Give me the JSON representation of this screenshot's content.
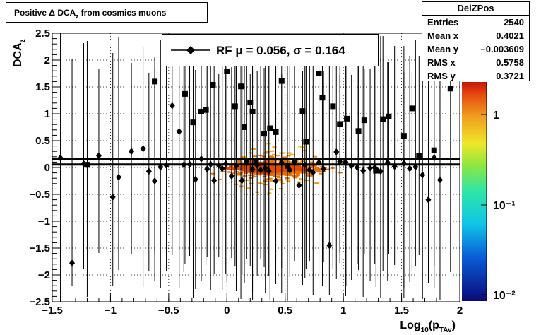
{
  "title": "Positive Δ DCA_z from cosmics muons",
  "stats": {
    "name": "DelZPos",
    "rows": [
      {
        "key": "Entries",
        "value": "2540"
      },
      {
        "key": "Mean x",
        "value": "0.4021"
      },
      {
        "key": "Mean y",
        "value": "−0.003609"
      },
      {
        "key": "RMS x",
        "value": "0.5758"
      },
      {
        "key": "RMS y",
        "value": "0.3721"
      }
    ]
  },
  "legend": {
    "label": "RF μ =  0.056, σ =   0.164"
  },
  "chart_data": {
    "type": "scatter",
    "xlabel": "Log_10(p_TAv)",
    "ylabel": "DCA_z",
    "xlim": [
      -1.5,
      2
    ],
    "ylim": [
      -2.5,
      2.5
    ],
    "x_ticks": [
      "−1.5",
      "−1",
      "−0.5",
      "0",
      "0.5",
      "1",
      "1.5",
      "2"
    ],
    "y_ticks": [
      "−2.5",
      "−2",
      "−1.5",
      "−1",
      "−0.5",
      "0",
      "0.5",
      "1",
      "1.5",
      "2",
      "2.5"
    ],
    "grid": true,
    "colz": {
      "scale": "log",
      "ticks": [
        "10⁻²",
        "10⁻¹",
        "1"
      ]
    },
    "fit_lines": [
      0.056,
      0.164
    ],
    "series": [
      {
        "marker": "diamond",
        "x": [
          -1.43,
          -1.33,
          -1.23,
          -1.1,
          -0.98,
          -0.93,
          -0.82,
          -0.72,
          -0.67,
          -0.62,
          -0.57,
          -0.52,
          -0.47,
          -0.41,
          -0.37,
          -0.32,
          -0.27,
          -0.22,
          -0.17,
          -0.14,
          -0.11,
          -0.07,
          -0.04,
          -0.01,
          0.04,
          0.08,
          0.13,
          0.17,
          0.22,
          0.26,
          0.29,
          0.33,
          0.36,
          0.42,
          0.47,
          0.54,
          0.58,
          0.62,
          0.67,
          0.71,
          0.74,
          0.79,
          0.83,
          0.88,
          0.94,
          0.97,
          1.02,
          1.07,
          1.12,
          1.17,
          1.23,
          1.27,
          1.32,
          1.38,
          1.44,
          1.52,
          1.57,
          1.62,
          1.68,
          1.73,
          1.78,
          1.83
        ],
        "y": [
          0.18,
          -1.78,
          0.07,
          0.22,
          -0.55,
          -0.18,
          0.3,
          0.35,
          -0.07,
          -0.25,
          0.01,
          0.04,
          1.15,
          0.67,
          0.05,
          0.06,
          -0.22,
          0.16,
          -0.03,
          0.06,
          -0.24,
          0.04,
          -0.02,
          0.07,
          -0.16,
          0.03,
          -0.24,
          0.11,
          -0.04,
          0.04,
          -0.05,
          -0.01,
          -0.07,
          -0.25,
          0.09,
          -0.05,
          0.11,
          -0.33,
          0.05,
          -0.05,
          -0.09,
          0.09,
          -0.03,
          -1.45,
          0.29,
          0.11,
          0.1,
          0.03,
          0.0,
          -0.06,
          -0.01,
          0.0,
          -0.07,
          0.09,
          0.02,
          0.08,
          -0.02,
          0.01,
          -0.14,
          -0.6,
          0.18,
          -0.23
        ]
      },
      {
        "marker": "square",
        "x": [
          -1.2,
          -0.62,
          -0.36,
          -0.29,
          -0.22,
          -0.18,
          -0.12,
          0.0,
          0.07,
          0.12,
          0.15,
          0.2,
          0.22,
          0.25,
          0.32,
          0.37,
          0.42,
          0.47,
          0.52,
          0.65,
          0.68,
          0.79,
          0.82,
          0.91,
          0.97,
          1.03,
          1.13,
          1.18,
          1.28,
          1.34,
          1.39,
          1.52,
          1.59,
          1.65,
          1.78,
          1.92
        ],
        "y": [
          0.05,
          1.6,
          1.37,
          0.84,
          1.04,
          1.07,
          1.54,
          1.79,
          1.14,
          1.51,
          0.75,
          1.21,
          1.04,
          0.12,
          0.63,
          0.73,
          0.66,
          1.61,
          0.03,
          1.05,
          0.48,
          1.75,
          1.3,
          1.14,
          0.81,
          0.91,
          0.68,
          0.88,
          -0.06,
          0.9,
          0.95,
          0.59,
          1.1,
          0.22,
          0.32,
          1.47
        ]
      }
    ]
  }
}
